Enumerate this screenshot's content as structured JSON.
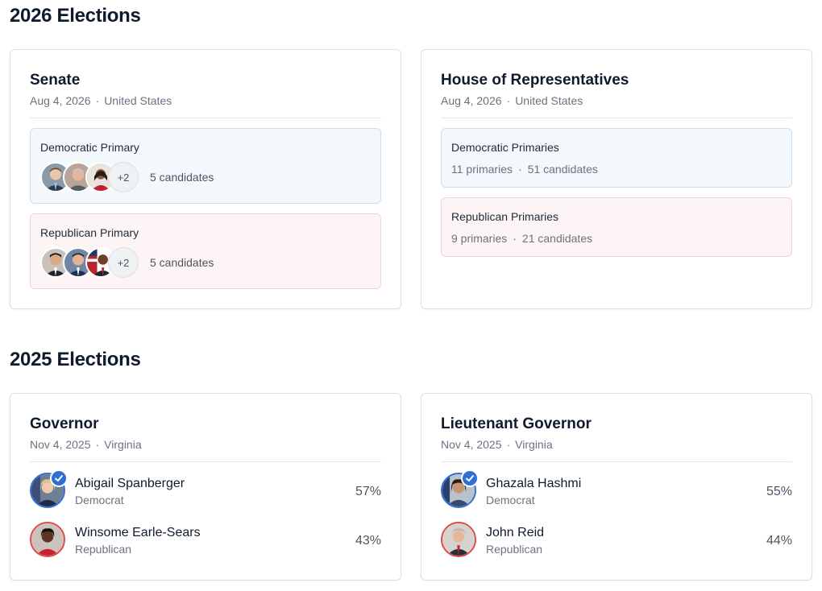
{
  "sections": [
    {
      "title": "2026 Elections",
      "cards": [
        {
          "title": "Senate",
          "date": "Aug 4, 2026",
          "location": "United States",
          "primaries": [
            {
              "label": "Democratic Primary",
              "more": "+2",
              "count": "5 candidates"
            },
            {
              "label": "Republican Primary",
              "more": "+2",
              "count": "5 candidates"
            }
          ]
        },
        {
          "title": "House of Representatives",
          "date": "Aug 4, 2026",
          "location": "United States",
          "primaries": [
            {
              "label": "Democratic Primaries",
              "primaries": "11 primaries",
              "count": "51 candidates"
            },
            {
              "label": "Republican Primaries",
              "primaries": "9 primaries",
              "count": "21 candidates"
            }
          ]
        }
      ]
    },
    {
      "title": "2025 Elections",
      "cards": [
        {
          "title": "Governor",
          "date": "Nov 4, 2025",
          "location": "Virginia",
          "candidates": [
            {
              "name": "Abigail Spanberger",
              "party": "Democrat",
              "pct": "57%",
              "winner": true
            },
            {
              "name": "Winsome Earle-Sears",
              "party": "Republican",
              "pct": "43%",
              "winner": false
            }
          ]
        },
        {
          "title": "Lieutenant Governor",
          "date": "Nov 4, 2025",
          "location": "Virginia",
          "candidates": [
            {
              "name": "Ghazala Hashmi",
              "party": "Democrat",
              "pct": "55%",
              "winner": true
            },
            {
              "name": "John Reid",
              "party": "Republican",
              "pct": "44%",
              "winner": false
            }
          ]
        }
      ]
    }
  ],
  "separator": "·",
  "colors": {
    "democrat": "#2f6fd4",
    "republican": "#dc4a4a",
    "dem_bg": "#f3f8fd",
    "rep_bg": "#fdf5f5"
  }
}
